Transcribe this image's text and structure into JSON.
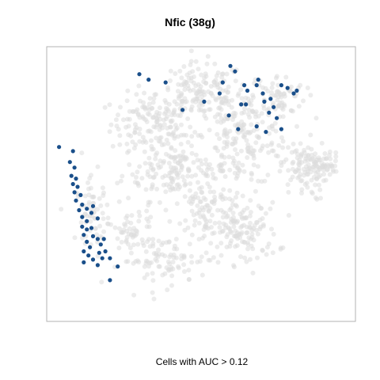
{
  "chart_data": {
    "type": "scatter",
    "title": "Nfic (38g)",
    "caption": "Cells with AUC > 0.12",
    "background_color": "#dcdcdc",
    "highlight_color": "#1a4f8a",
    "grid": false,
    "background_clusters": [
      {
        "cx": 0.34,
        "cy": 0.72,
        "rx": 0.12,
        "ry": 0.1,
        "n": 140
      },
      {
        "cx": 0.42,
        "cy": 0.55,
        "rx": 0.16,
        "ry": 0.1,
        "n": 170
      },
      {
        "cx": 0.5,
        "cy": 0.83,
        "rx": 0.13,
        "ry": 0.1,
        "n": 150
      },
      {
        "cx": 0.63,
        "cy": 0.67,
        "rx": 0.14,
        "ry": 0.16,
        "n": 200
      },
      {
        "cx": 0.75,
        "cy": 0.82,
        "rx": 0.08,
        "ry": 0.07,
        "n": 70
      },
      {
        "cx": 0.83,
        "cy": 0.55,
        "rx": 0.07,
        "ry": 0.1,
        "n": 90
      },
      {
        "cx": 0.89,
        "cy": 0.57,
        "rx": 0.06,
        "ry": 0.04,
        "n": 50
      },
      {
        "cx": 0.64,
        "cy": 0.32,
        "rx": 0.1,
        "ry": 0.1,
        "n": 110
      },
      {
        "cx": 0.38,
        "cy": 0.22,
        "rx": 0.13,
        "ry": 0.08,
        "n": 90
      },
      {
        "cx": 0.15,
        "cy": 0.4,
        "rx": 0.05,
        "ry": 0.1,
        "n": 60
      },
      {
        "cx": 0.53,
        "cy": 0.38,
        "rx": 0.1,
        "ry": 0.12,
        "n": 100
      },
      {
        "cx": 0.28,
        "cy": 0.33,
        "rx": 0.07,
        "ry": 0.08,
        "n": 50
      }
    ],
    "highlighted_points": [
      {
        "x": 0.04,
        "y": 0.635
      },
      {
        "x": 0.085,
        "y": 0.62
      },
      {
        "x": 0.075,
        "y": 0.58
      },
      {
        "x": 0.09,
        "y": 0.56
      },
      {
        "x": 0.08,
        "y": 0.53
      },
      {
        "x": 0.095,
        "y": 0.52
      },
      {
        "x": 0.085,
        "y": 0.5
      },
      {
        "x": 0.1,
        "y": 0.49
      },
      {
        "x": 0.09,
        "y": 0.47
      },
      {
        "x": 0.11,
        "y": 0.46
      },
      {
        "x": 0.095,
        "y": 0.44
      },
      {
        "x": 0.115,
        "y": 0.425
      },
      {
        "x": 0.13,
        "y": 0.41
      },
      {
        "x": 0.15,
        "y": 0.42
      },
      {
        "x": 0.145,
        "y": 0.395
      },
      {
        "x": 0.105,
        "y": 0.405
      },
      {
        "x": 0.115,
        "y": 0.38
      },
      {
        "x": 0.13,
        "y": 0.365
      },
      {
        "x": 0.165,
        "y": 0.375
      },
      {
        "x": 0.115,
        "y": 0.345
      },
      {
        "x": 0.13,
        "y": 0.335
      },
      {
        "x": 0.145,
        "y": 0.34
      },
      {
        "x": 0.12,
        "y": 0.315
      },
      {
        "x": 0.15,
        "y": 0.31
      },
      {
        "x": 0.165,
        "y": 0.3
      },
      {
        "x": 0.185,
        "y": 0.3
      },
      {
        "x": 0.13,
        "y": 0.29
      },
      {
        "x": 0.14,
        "y": 0.27
      },
      {
        "x": 0.175,
        "y": 0.28
      },
      {
        "x": 0.12,
        "y": 0.255
      },
      {
        "x": 0.17,
        "y": 0.25
      },
      {
        "x": 0.18,
        "y": 0.23
      },
      {
        "x": 0.135,
        "y": 0.24
      },
      {
        "x": 0.15,
        "y": 0.225
      },
      {
        "x": 0.19,
        "y": 0.255
      },
      {
        "x": 0.165,
        "y": 0.205
      },
      {
        "x": 0.205,
        "y": 0.23
      },
      {
        "x": 0.12,
        "y": 0.215
      },
      {
        "x": 0.205,
        "y": 0.15
      },
      {
        "x": 0.23,
        "y": 0.2
      },
      {
        "x": 0.3,
        "y": 0.9
      },
      {
        "x": 0.33,
        "y": 0.88
      },
      {
        "x": 0.385,
        "y": 0.87
      },
      {
        "x": 0.44,
        "y": 0.77
      },
      {
        "x": 0.51,
        "y": 0.8
      },
      {
        "x": 0.56,
        "y": 0.83
      },
      {
        "x": 0.59,
        "y": 0.75
      },
      {
        "x": 0.63,
        "y": 0.79
      },
      {
        "x": 0.645,
        "y": 0.79
      },
      {
        "x": 0.57,
        "y": 0.87
      },
      {
        "x": 0.61,
        "y": 0.91
      },
      {
        "x": 0.595,
        "y": 0.93
      },
      {
        "x": 0.64,
        "y": 0.86
      },
      {
        "x": 0.65,
        "y": 0.84
      },
      {
        "x": 0.68,
        "y": 0.86
      },
      {
        "x": 0.685,
        "y": 0.88
      },
      {
        "x": 0.7,
        "y": 0.83
      },
      {
        "x": 0.705,
        "y": 0.8
      },
      {
        "x": 0.725,
        "y": 0.81
      },
      {
        "x": 0.735,
        "y": 0.78
      },
      {
        "x": 0.72,
        "y": 0.76
      },
      {
        "x": 0.745,
        "y": 0.74
      },
      {
        "x": 0.76,
        "y": 0.86
      },
      {
        "x": 0.78,
        "y": 0.85
      },
      {
        "x": 0.8,
        "y": 0.83
      },
      {
        "x": 0.81,
        "y": 0.84
      },
      {
        "x": 0.76,
        "y": 0.7
      },
      {
        "x": 0.71,
        "y": 0.69
      },
      {
        "x": 0.62,
        "y": 0.7
      },
      {
        "x": 0.68,
        "y": 0.71
      }
    ]
  }
}
